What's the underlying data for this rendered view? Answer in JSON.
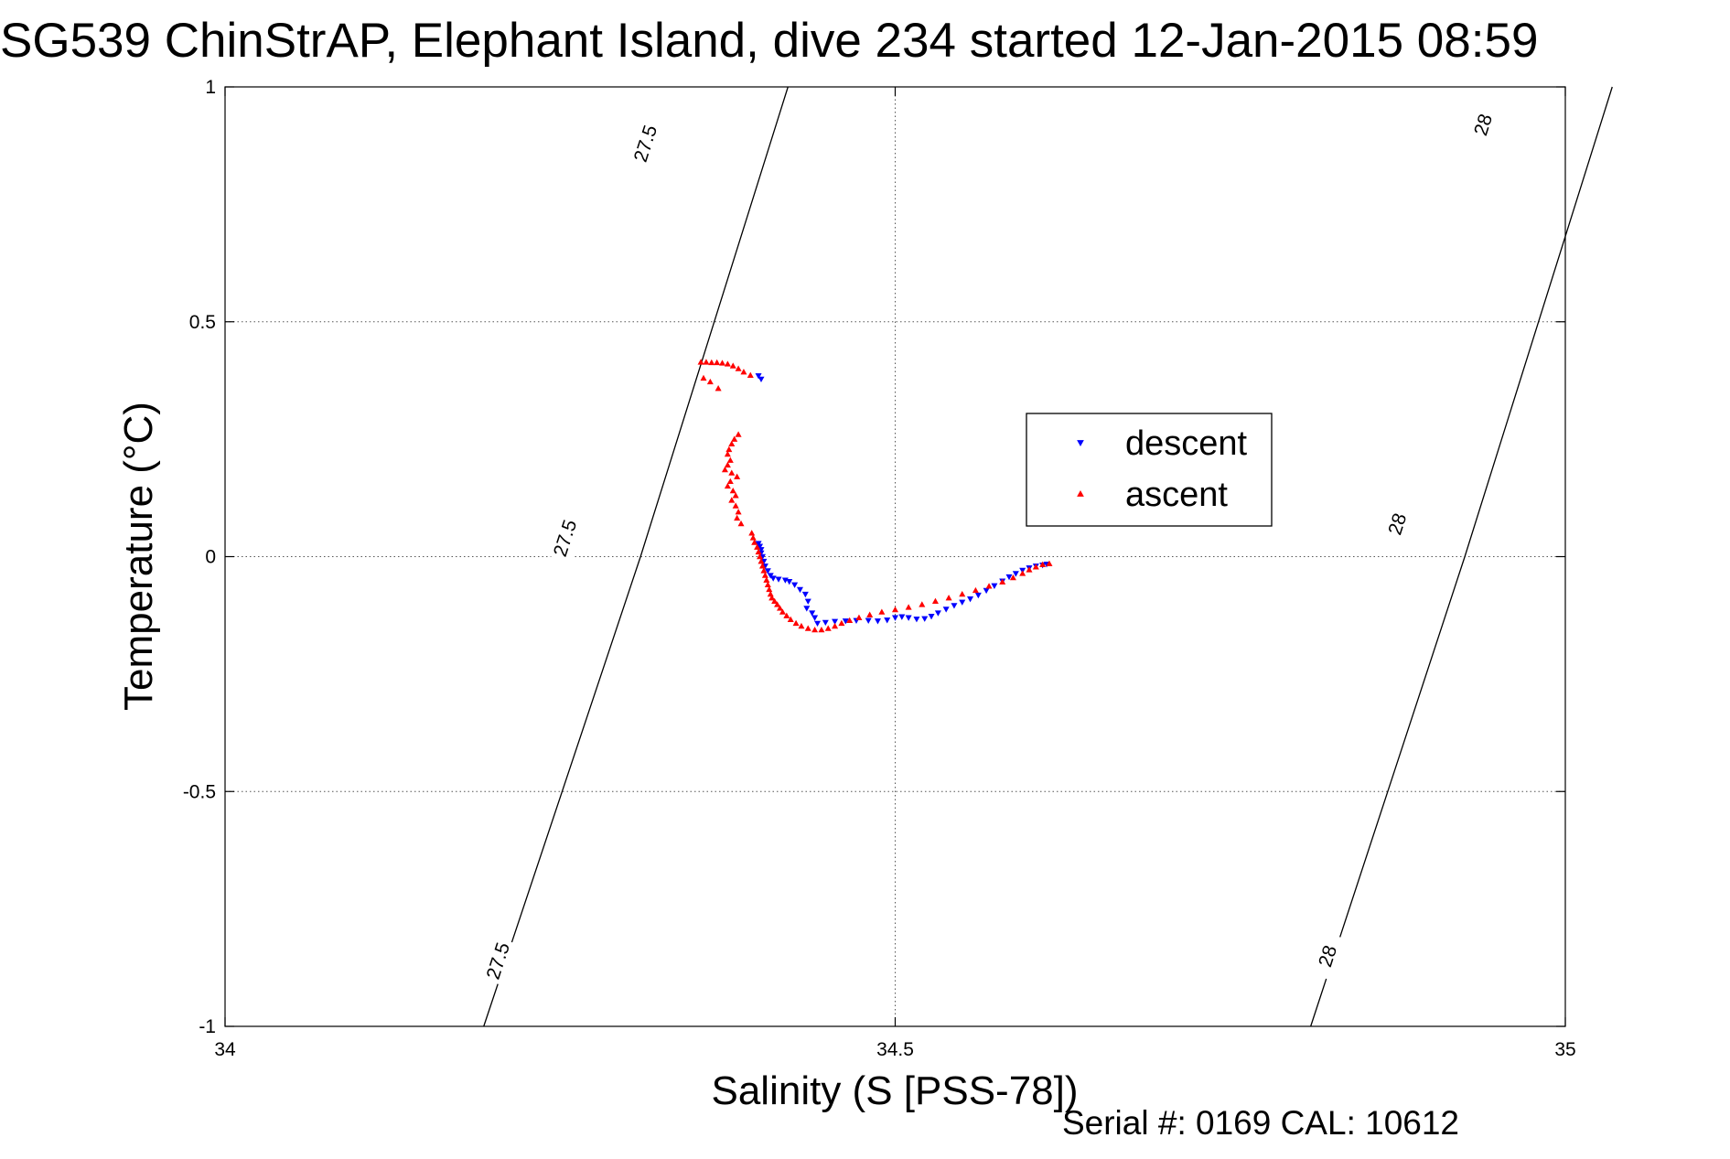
{
  "chart_data": {
    "type": "scatter",
    "title": "SG539 ChinStrAP, Elephant Island, dive 234 started 12-Jan-2015 08:59",
    "xlabel": "Salinity (S [PSS-78])",
    "ylabel": "Temperature (°C)",
    "footer": "Serial #: 0169 CAL: 10612",
    "xlim": [
      34,
      35
    ],
    "ylim": [
      -1,
      1
    ],
    "x_ticks": [
      34,
      34.5,
      35
    ],
    "x_tick_labels": [
      "34",
      "34.5",
      "35"
    ],
    "y_ticks": [
      -1,
      -0.5,
      0,
      0.5,
      1
    ],
    "y_tick_labels": [
      "-1",
      "-0.5",
      "0",
      "0.5",
      "1"
    ],
    "grid": true,
    "legend_position": "right-center",
    "contours": [
      {
        "label": "27.5",
        "points": [
          [
            34.193,
            -1
          ],
          [
            34.31,
            0
          ],
          [
            34.42,
            1
          ]
        ],
        "label_positions": [
          [
            34.203,
            -0.86
          ],
          [
            34.253,
            0.04
          ],
          [
            34.313,
            0.88
          ]
        ]
      },
      {
        "label": "28",
        "points": [
          [
            34.81,
            -1
          ],
          [
            34.925,
            0
          ],
          [
            35.035,
            1
          ]
        ],
        "label_positions": [
          [
            34.822,
            -0.85
          ],
          [
            34.874,
            0.07
          ],
          [
            34.938,
            0.92
          ]
        ]
      }
    ],
    "series": [
      {
        "name": "descent",
        "color": "#0000ff",
        "marker": "triangle-down",
        "points": [
          [
            34.398,
            0.385
          ],
          [
            34.4,
            0.378
          ],
          [
            34.398,
            0.028
          ],
          [
            34.399,
            0.022
          ],
          [
            34.4,
            0.015
          ],
          [
            34.4,
            0.008
          ],
          [
            34.401,
            0.0
          ],
          [
            34.402,
            -0.01
          ],
          [
            34.403,
            -0.02
          ],
          [
            34.405,
            -0.03
          ],
          [
            34.407,
            -0.04
          ],
          [
            34.409,
            -0.046
          ],
          [
            34.413,
            -0.048
          ],
          [
            34.418,
            -0.05
          ],
          [
            34.421,
            -0.053
          ],
          [
            34.425,
            -0.06
          ],
          [
            34.429,
            -0.07
          ],
          [
            34.433,
            -0.08
          ],
          [
            34.435,
            -0.095
          ],
          [
            34.434,
            -0.11
          ],
          [
            34.438,
            -0.12
          ],
          [
            34.44,
            -0.13
          ],
          [
            34.442,
            -0.142
          ],
          [
            34.448,
            -0.14
          ],
          [
            34.455,
            -0.138
          ],
          [
            34.463,
            -0.137
          ],
          [
            34.471,
            -0.136
          ],
          [
            34.48,
            -0.136
          ],
          [
            34.487,
            -0.137
          ],
          [
            34.494,
            -0.135
          ],
          [
            34.5,
            -0.13
          ],
          [
            34.505,
            -0.128
          ],
          [
            34.51,
            -0.13
          ],
          [
            34.516,
            -0.133
          ],
          [
            34.522,
            -0.132
          ],
          [
            34.527,
            -0.127
          ],
          [
            34.532,
            -0.12
          ],
          [
            34.538,
            -0.112
          ],
          [
            34.544,
            -0.104
          ],
          [
            34.55,
            -0.097
          ],
          [
            34.556,
            -0.09
          ],
          [
            34.562,
            -0.082
          ],
          [
            34.568,
            -0.072
          ],
          [
            34.574,
            -0.062
          ],
          [
            34.58,
            -0.052
          ],
          [
            34.585,
            -0.043
          ],
          [
            34.59,
            -0.036
          ],
          [
            34.595,
            -0.029
          ],
          [
            34.6,
            -0.024
          ],
          [
            34.605,
            -0.02
          ],
          [
            34.61,
            -0.018
          ],
          [
            34.613,
            -0.016
          ]
        ]
      },
      {
        "name": "ascent",
        "color": "#ff0000",
        "marker": "triangle-up",
        "points": [
          [
            34.355,
            0.414
          ],
          [
            34.359,
            0.414
          ],
          [
            34.363,
            0.413
          ],
          [
            34.367,
            0.413
          ],
          [
            34.371,
            0.412
          ],
          [
            34.375,
            0.41
          ],
          [
            34.379,
            0.406
          ],
          [
            34.383,
            0.4
          ],
          [
            34.387,
            0.393
          ],
          [
            34.392,
            0.386
          ],
          [
            34.357,
            0.38
          ],
          [
            34.362,
            0.372
          ],
          [
            34.368,
            0.358
          ],
          [
            34.383,
            0.26
          ],
          [
            34.38,
            0.25
          ],
          [
            34.378,
            0.24
          ],
          [
            34.376,
            0.228
          ],
          [
            34.375,
            0.218
          ],
          [
            34.377,
            0.205
          ],
          [
            34.375,
            0.195
          ],
          [
            34.373,
            0.185
          ],
          [
            34.378,
            0.178
          ],
          [
            34.382,
            0.17
          ],
          [
            34.377,
            0.16
          ],
          [
            34.375,
            0.15
          ],
          [
            34.379,
            0.14
          ],
          [
            34.381,
            0.13
          ],
          [
            34.378,
            0.12
          ],
          [
            34.381,
            0.108
          ],
          [
            34.383,
            0.095
          ],
          [
            34.382,
            0.082
          ],
          [
            34.385,
            0.07
          ],
          [
            34.393,
            0.05
          ],
          [
            34.394,
            0.04
          ],
          [
            34.395,
            0.03
          ],
          [
            34.397,
            0.02
          ],
          [
            34.398,
            0.01
          ],
          [
            34.399,
            0.0
          ],
          [
            34.4,
            -0.01
          ],
          [
            34.401,
            -0.02
          ],
          [
            34.402,
            -0.03
          ],
          [
            34.403,
            -0.04
          ],
          [
            34.404,
            -0.05
          ],
          [
            34.405,
            -0.06
          ],
          [
            34.406,
            -0.07
          ],
          [
            34.407,
            -0.08
          ],
          [
            34.408,
            -0.088
          ],
          [
            34.41,
            -0.095
          ],
          [
            34.412,
            -0.102
          ],
          [
            34.414,
            -0.11
          ],
          [
            34.416,
            -0.118
          ],
          [
            34.419,
            -0.126
          ],
          [
            34.422,
            -0.134
          ],
          [
            34.426,
            -0.142
          ],
          [
            34.43,
            -0.148
          ],
          [
            34.435,
            -0.153
          ],
          [
            34.44,
            -0.156
          ],
          [
            34.445,
            -0.156
          ],
          [
            34.45,
            -0.153
          ],
          [
            34.455,
            -0.148
          ],
          [
            34.46,
            -0.142
          ],
          [
            34.466,
            -0.136
          ],
          [
            34.473,
            -0.13
          ],
          [
            34.481,
            -0.124
          ],
          [
            34.49,
            -0.118
          ],
          [
            34.5,
            -0.113
          ],
          [
            34.51,
            -0.108
          ],
          [
            34.52,
            -0.102
          ],
          [
            34.53,
            -0.095
          ],
          [
            34.54,
            -0.088
          ],
          [
            34.55,
            -0.08
          ],
          [
            34.56,
            -0.072
          ],
          [
            34.57,
            -0.063
          ],
          [
            34.58,
            -0.054
          ],
          [
            34.588,
            -0.045
          ],
          [
            34.595,
            -0.036
          ],
          [
            34.6,
            -0.028
          ],
          [
            34.605,
            -0.022
          ],
          [
            34.61,
            -0.017
          ],
          [
            34.615,
            -0.015
          ]
        ]
      }
    ]
  }
}
